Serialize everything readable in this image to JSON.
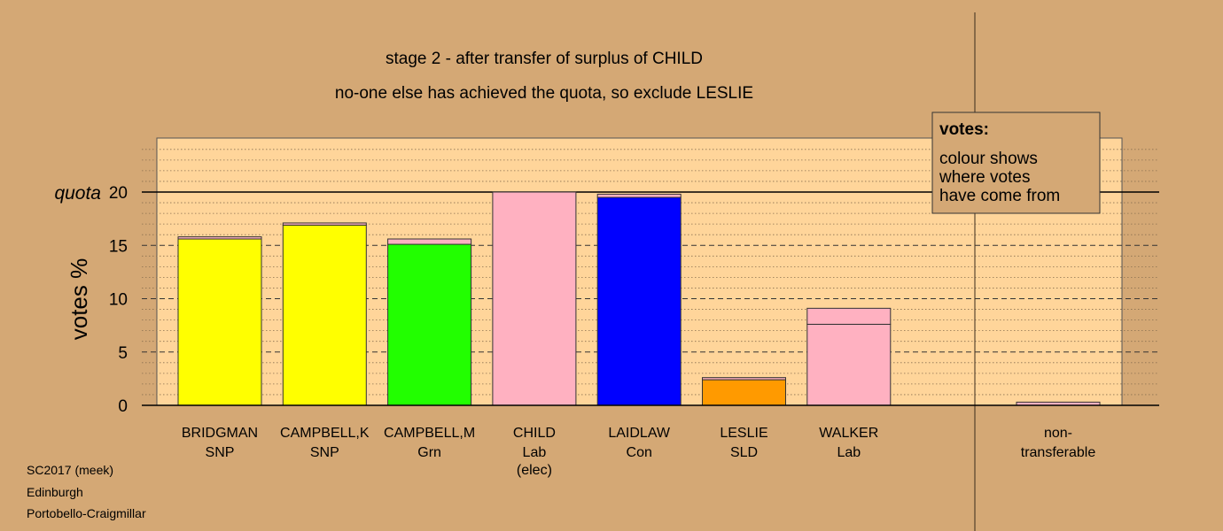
{
  "chart_data": {
    "type": "bar",
    "title": "stage 2 - after transfer of surplus of CHILD",
    "subtitle": "no-one else has achieved the quota, so exclude LESLIE",
    "ylabel": "votes %",
    "ylim": [
      0,
      25
    ],
    "yticks": [
      "0",
      "5",
      "10",
      "15",
      "20"
    ],
    "quota": {
      "value": 20,
      "label": "quota"
    },
    "candidates": [
      {
        "name": "BRIDGMAN",
        "party": "SNP",
        "note": "",
        "base": 15.6,
        "base_color": "#FFFF00",
        "transfer": 0.2
      },
      {
        "name": "CAMPBELL,K",
        "party": "SNP",
        "note": "",
        "base": 16.9,
        "base_color": "#FFFF00",
        "transfer": 0.2
      },
      {
        "name": "CAMPBELL,M",
        "party": "Grn",
        "note": "",
        "base": 15.1,
        "base_color": "#22FF00",
        "transfer": 0.5
      },
      {
        "name": "CHILD",
        "party": "Lab",
        "note": "(elec)",
        "base": 20.0,
        "base_color": "#FFB1C1",
        "transfer": 0
      },
      {
        "name": "LAIDLAW",
        "party": "Con",
        "note": "",
        "base": 19.5,
        "base_color": "#0000FF",
        "transfer": 0.3
      },
      {
        "name": "LESLIE",
        "party": "SLD",
        "note": "",
        "base": 2.4,
        "base_color": "#FF9A00",
        "transfer": 0.2
      },
      {
        "name": "WALKER",
        "party": "Lab",
        "note": "",
        "base": 7.6,
        "base_color": "#FFB1C1",
        "transfer": 1.5
      }
    ],
    "nontransferable": {
      "line1": "non-",
      "line2": "transferable",
      "value": 0.3
    },
    "transfer_color": "#FFB1C1",
    "legend": {
      "title": "votes:",
      "lines": [
        "colour shows",
        "where votes",
        "have come from"
      ]
    },
    "plot_bg": "#FFD59A",
    "page_bg": "#D4A875"
  },
  "footer": {
    "line1": "SC2017 (meek)",
    "line2": "Edinburgh",
    "line3": "Portobello-Craigmillar"
  }
}
